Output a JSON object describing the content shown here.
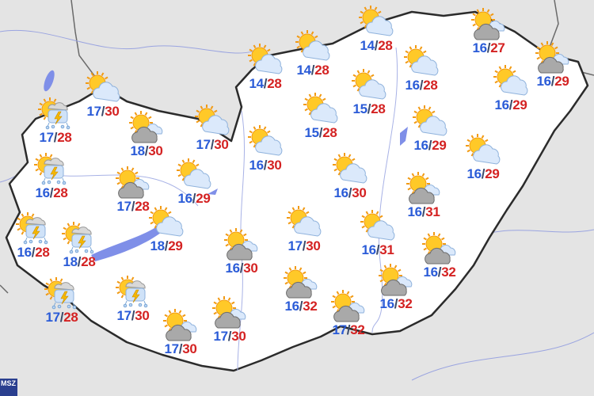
{
  "map": {
    "country": "Hungary",
    "colors": {
      "land": "#ffffff",
      "background": "#e4e4e4",
      "border": "#2b2b2b",
      "water": "#7f8fe8",
      "min_temp": "#2a5bd7",
      "max_temp": "#d42222"
    },
    "logo_text": "MSZ"
  },
  "stations": [
    {
      "icon": "sun-cloud",
      "min": "17",
      "max": "30"
    },
    {
      "icon": "sun-thunderstorm",
      "min": "17",
      "max": "28"
    },
    {
      "icon": "sun-gray-cloud",
      "min": "18",
      "max": "30"
    },
    {
      "icon": "sun-cloud",
      "min": "17",
      "max": "30"
    },
    {
      "icon": "sun-cloud",
      "min": "14",
      "max": "28"
    },
    {
      "icon": "sun-cloud",
      "min": "14",
      "max": "28"
    },
    {
      "icon": "sun-cloud",
      "min": "14",
      "max": "28"
    },
    {
      "icon": "sun-gray-cloud",
      "min": "16",
      "max": "27"
    },
    {
      "icon": "sun-cloud",
      "min": "16",
      "max": "28"
    },
    {
      "icon": "sun-gray-cloud",
      "min": "16",
      "max": "29"
    },
    {
      "icon": "sun-cloud",
      "min": "15",
      "max": "28"
    },
    {
      "icon": "sun-cloud",
      "min": "15",
      "max": "28"
    },
    {
      "icon": "sun-cloud",
      "min": "16",
      "max": "29"
    },
    {
      "icon": "sun-cloud",
      "min": "16",
      "max": "29"
    },
    {
      "icon": "sun-cloud",
      "min": "16",
      "max": "30"
    },
    {
      "icon": "sun-thunderstorm",
      "min": "16",
      "max": "28"
    },
    {
      "icon": "sun-cloud",
      "min": "16",
      "max": "29"
    },
    {
      "icon": "sun-gray-cloud",
      "min": "17",
      "max": "28"
    },
    {
      "icon": "sun-cloud",
      "min": "16",
      "max": "29"
    },
    {
      "icon": "sun-cloud",
      "min": "16",
      "max": "30"
    },
    {
      "icon": "sun-gray-cloud",
      "min": "16",
      "max": "31"
    },
    {
      "icon": "sun-thunderstorm",
      "min": "16",
      "max": "28"
    },
    {
      "icon": "sun-thunderstorm",
      "min": "18",
      "max": "28"
    },
    {
      "icon": "sun-cloud",
      "min": "18",
      "max": "29"
    },
    {
      "icon": "sun-cloud",
      "min": "17",
      "max": "30"
    },
    {
      "icon": "sun-cloud",
      "min": "16",
      "max": "31"
    },
    {
      "icon": "sun-gray-cloud",
      "min": "16",
      "max": "30"
    },
    {
      "icon": "sun-gray-cloud",
      "min": "16",
      "max": "32"
    },
    {
      "icon": "sun-thunderstorm",
      "min": "17",
      "max": "28"
    },
    {
      "icon": "sun-thunderstorm",
      "min": "17",
      "max": "30"
    },
    {
      "icon": "sun-gray-cloud",
      "min": "16",
      "max": "32"
    },
    {
      "icon": "sun-gray-cloud",
      "min": "16",
      "max": "32"
    },
    {
      "icon": "sun-gray-cloud",
      "min": "17",
      "max": "32"
    },
    {
      "icon": "sun-gray-cloud",
      "min": "17",
      "max": "30"
    },
    {
      "icon": "sun-gray-cloud",
      "min": "17",
      "max": "30"
    }
  ]
}
